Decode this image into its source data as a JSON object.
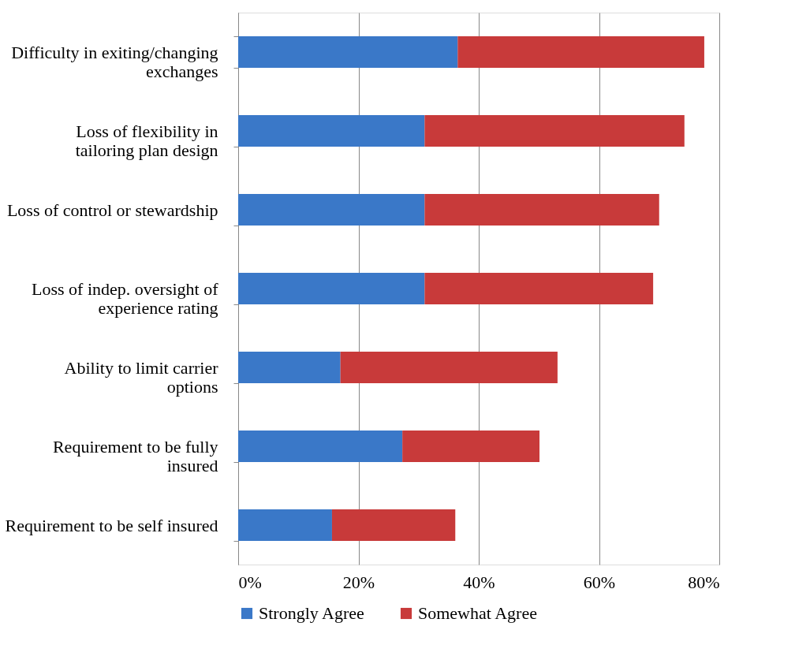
{
  "chart_data": {
    "type": "bar",
    "orientation": "horizontal",
    "stacked": true,
    "categories": [
      "Difficulty in exiting/changing exchanges",
      "Loss of flexibility in tailoring plan design",
      "Loss of control or stewardship",
      "Loss of indep. oversight of experience rating",
      "Ability to limit carrier options",
      "Requirement to be fully insured",
      "Requirement to be self insured"
    ],
    "series": [
      {
        "name": "Strongly Agree",
        "color": "#3a78c8",
        "values": [
          36.5,
          31,
          31,
          31,
          17,
          27.3,
          15.6
        ]
      },
      {
        "name": "Somewhat Agree",
        "color": "#c83a3a",
        "values": [
          41,
          43.2,
          39,
          38,
          36.1,
          22.8,
          20.5
        ]
      }
    ],
    "xlim": [
      0,
      80
    ],
    "xticks": [
      {
        "value": 0,
        "label": "0%"
      },
      {
        "value": 20,
        "label": "20%"
      },
      {
        "value": 40,
        "label": "40%"
      },
      {
        "value": 60,
        "label": "60%"
      },
      {
        "value": 80,
        "label": "80%"
      }
    ],
    "grid": "x",
    "legend": "bottom"
  }
}
